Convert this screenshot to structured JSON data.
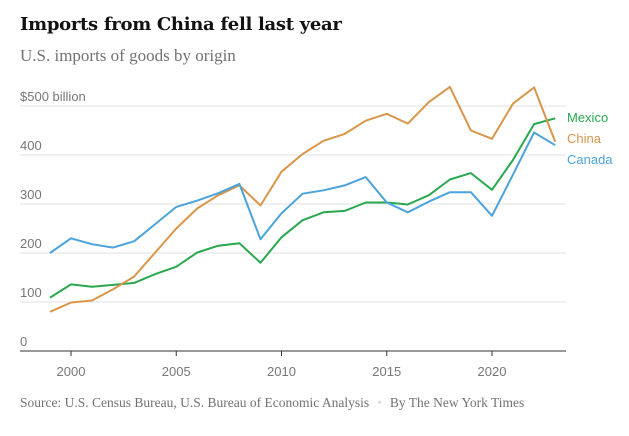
{
  "header": {
    "title": "Imports from China fell last year",
    "subtitle": "U.S. imports of goods by origin"
  },
  "footer": {
    "source": "Source: U.S. Census Bureau, U.S. Bureau of Economic Analysis",
    "separator": "•",
    "credit": "By The New York Times"
  },
  "chart_data": {
    "type": "line",
    "title": "Imports from China fell last year",
    "subtitle": "U.S. imports of goods by origin",
    "xlabel": "",
    "ylabel": "$ billion",
    "xlim": [
      1999,
      2023
    ],
    "ylim": [
      0,
      500
    ],
    "grid": true,
    "legend": "right-end labels",
    "x": [
      1999,
      2000,
      2001,
      2002,
      2003,
      2004,
      2005,
      2006,
      2007,
      2008,
      2009,
      2010,
      2011,
      2012,
      2013,
      2014,
      2015,
      2016,
      2017,
      2018,
      2019,
      2020,
      2021,
      2022,
      2023
    ],
    "x_ticks": [
      2000,
      2005,
      2010,
      2015,
      2020
    ],
    "x_tick_labels": [
      "2000",
      "2005",
      "2010",
      "2015",
      "2020"
    ],
    "y_ticks": [
      0,
      100,
      200,
      300,
      400,
      500
    ],
    "y_tick_labels": [
      "0",
      "100",
      "200",
      "300",
      "400",
      "$500 billion"
    ],
    "series": [
      {
        "name": "Mexico",
        "color": "#2aa84f",
        "values": [
          109,
          136,
          131,
          135,
          139,
          157,
          172,
          201,
          215,
          220,
          180,
          232,
          267,
          283,
          286,
          303,
          303,
          299,
          318,
          350,
          363,
          329,
          390,
          463,
          475
        ]
      },
      {
        "name": "China",
        "color": "#d9954a",
        "values": [
          80,
          99,
          103,
          126,
          152,
          201,
          250,
          291,
          318,
          338,
          297,
          366,
          402,
          429,
          443,
          470,
          484,
          464,
          508,
          539,
          450,
          433,
          505,
          538,
          427
        ]
      },
      {
        "name": "Canada",
        "color": "#4aa3dc",
        "values": [
          200,
          230,
          218,
          211,
          224,
          259,
          294,
          307,
          322,
          341,
          228,
          281,
          321,
          328,
          338,
          355,
          303,
          283,
          305,
          324,
          324,
          276,
          360,
          446,
          420
        ]
      }
    ]
  }
}
